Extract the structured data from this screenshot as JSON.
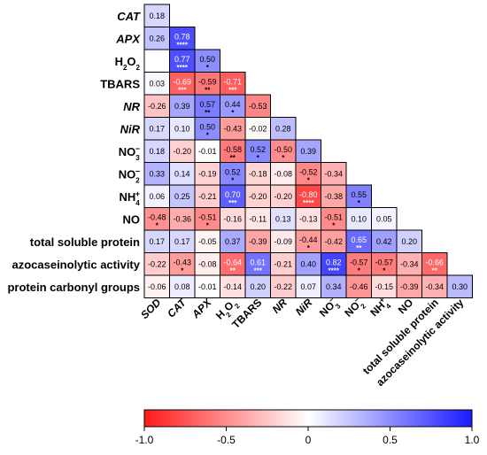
{
  "chart_data": {
    "type": "heatmap",
    "title": "",
    "row_labels": [
      {
        "base": "CAT",
        "italic": true
      },
      {
        "base": "APX",
        "italic": true
      },
      {
        "base": "H",
        "sub": "2",
        "mid": "O",
        "sub2": "2"
      },
      {
        "base": "TBARS"
      },
      {
        "base": "NR",
        "italic": true
      },
      {
        "base": "NiR",
        "italic": true
      },
      {
        "base": "NO",
        "sub": "3",
        "sup": "−"
      },
      {
        "base": "NO",
        "sub": "2",
        "sup": "−"
      },
      {
        "base": "NH",
        "sub": "4",
        "sup": "+"
      },
      {
        "base": "NO"
      },
      {
        "base": "total soluble protein"
      },
      {
        "base": "azocaseinolytic activity"
      },
      {
        "base": "protein carbonyl groups"
      }
    ],
    "col_labels": [
      {
        "base": "SOD",
        "italic": true
      },
      {
        "base": "CAT",
        "italic": true
      },
      {
        "base": "APX",
        "italic": true
      },
      {
        "base": "H",
        "sub": "2",
        "mid": "O",
        "sub2": "2"
      },
      {
        "base": "TBARS"
      },
      {
        "base": "NR",
        "italic": true
      },
      {
        "base": "NiR",
        "italic": true
      },
      {
        "base": "NO",
        "sub": "3",
        "sup": "−"
      },
      {
        "base": "NO",
        "sub": "2",
        "sup": "−"
      },
      {
        "base": "NH",
        "sub": "4",
        "sup": "+"
      },
      {
        "base": "NO"
      },
      {
        "base": "total soluble protein"
      },
      {
        "base": "azocaseinolytic activity"
      }
    ],
    "cells": [
      [
        [
          "0.18",
          ""
        ]
      ],
      [
        [
          "0.26",
          ""
        ],
        [
          "0.78",
          "****"
        ]
      ],
      [
        [
          "",
          ""
        ],
        [
          "0.77",
          "****"
        ],
        [
          "0.50",
          "*"
        ]
      ],
      [
        [
          "0.03",
          ""
        ],
        [
          "-0.69",
          "***"
        ],
        [
          "-0.59",
          "**"
        ],
        [
          "-0.71",
          "***"
        ]
      ],
      [
        [
          "-0.26",
          ""
        ],
        [
          "0.39",
          ""
        ],
        [
          "0.57",
          "**"
        ],
        [
          "0.44",
          "*"
        ],
        [
          "-0.53",
          ""
        ]
      ],
      [
        [
          "0.17",
          ""
        ],
        [
          "0.10",
          ""
        ],
        [
          "0.50",
          "*"
        ],
        [
          "-0.43",
          ""
        ],
        [
          "-0.02",
          ""
        ],
        [
          "0.28",
          ""
        ]
      ],
      [
        [
          "0.18",
          ""
        ],
        [
          "-0.20",
          ""
        ],
        [
          "-0.01",
          ""
        ],
        [
          "-0.58",
          "**"
        ],
        [
          "0.52",
          "*"
        ],
        [
          "-0.50",
          "*"
        ],
        [
          "0.39",
          ""
        ]
      ],
      [
        [
          "0.33",
          ""
        ],
        [
          "0.14",
          ""
        ],
        [
          "-0.19",
          ""
        ],
        [
          "0.52",
          "*"
        ],
        [
          "-0.18",
          ""
        ],
        [
          "-0.08",
          ""
        ],
        [
          "-0.52",
          "*"
        ],
        [
          "-0.34",
          ""
        ]
      ],
      [
        [
          "0.06",
          ""
        ],
        [
          "0.25",
          ""
        ],
        [
          "-0.21",
          ""
        ],
        [
          "0.70",
          "***"
        ],
        [
          "-0.20",
          ""
        ],
        [
          "-0.20",
          ""
        ],
        [
          "-0.80",
          "****"
        ],
        [
          "-0.38",
          ""
        ],
        [
          "0.55",
          "*"
        ]
      ],
      [
        [
          "-0.48",
          "*"
        ],
        [
          "-0.36",
          ""
        ],
        [
          "-0.51",
          "*"
        ],
        [
          "-0.16",
          ""
        ],
        [
          "-0.11",
          ""
        ],
        [
          "0.13",
          ""
        ],
        [
          "-0.13",
          ""
        ],
        [
          "-0.51",
          "*"
        ],
        [
          "0.10",
          ""
        ],
        [
          "0.05",
          ""
        ]
      ],
      [
        [
          "0.17",
          ""
        ],
        [
          "0.17",
          ""
        ],
        [
          "-0.05",
          ""
        ],
        [
          "0.37",
          ""
        ],
        [
          "-0.39",
          ""
        ],
        [
          "-0.09",
          ""
        ],
        [
          "-0.44",
          "*"
        ],
        [
          "-0.42",
          ""
        ],
        [
          "0.65",
          "**"
        ],
        [
          "0.42",
          ""
        ],
        [
          "0.20",
          ""
        ]
      ],
      [
        [
          "-0.22",
          ""
        ],
        [
          "-0.43",
          "*"
        ],
        [
          "-0.08",
          ""
        ],
        [
          "-0.64",
          "**"
        ],
        [
          "0.61",
          "***"
        ],
        [
          "-0.21",
          ""
        ],
        [
          "0.40",
          ""
        ],
        [
          "0.82",
          "****"
        ],
        [
          "-0.57",
          "*"
        ],
        [
          "-0.57",
          "*"
        ],
        [
          "-0.34",
          ""
        ],
        [
          "-0.66",
          "**"
        ]
      ],
      [
        [
          "-0.06",
          ""
        ],
        [
          "0.08",
          ""
        ],
        [
          "-0.01",
          ""
        ],
        [
          "-0.14",
          ""
        ],
        [
          "0.20",
          ""
        ],
        [
          "-0.22",
          ""
        ],
        [
          "0.07",
          ""
        ],
        [
          "0.34",
          ""
        ],
        [
          "-0.46",
          ""
        ],
        [
          "-0.15",
          ""
        ],
        [
          "-0.39",
          ""
        ],
        [
          "-0.34",
          ""
        ],
        [
          "0.30",
          ""
        ]
      ]
    ],
    "colorbar": {
      "ticks": [
        "-1.0",
        "-0.5",
        "0",
        "0.5",
        "1.0"
      ],
      "range": [
        -1.0,
        1.0
      ],
      "low_color": "#ff1a1a",
      "mid_color": "#ffffff",
      "high_color": "#1a1aff"
    }
  }
}
